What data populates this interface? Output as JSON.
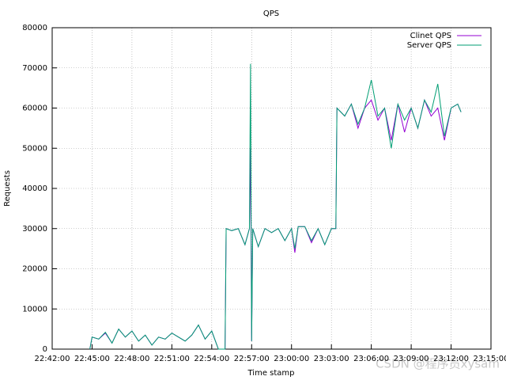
{
  "chart_data": {
    "type": "line",
    "title": "QPS",
    "x_label": "Time stamp",
    "y_label": "Requests",
    "xlim": [
      "22:42:00",
      "23:15:00"
    ],
    "xticks": [
      "22:42:00",
      "22:45:00",
      "22:48:00",
      "22:51:00",
      "22:54:00",
      "22:57:00",
      "23:00:00",
      "23:03:00",
      "23:06:00",
      "23:09:00",
      "23:12:00",
      "23:15:00"
    ],
    "ylim": [
      0,
      80000
    ],
    "yticks": [
      0,
      10000,
      20000,
      30000,
      40000,
      50000,
      60000,
      70000,
      80000
    ],
    "grid": true,
    "legend": "top-right",
    "watermark": "CSDN @程序员xysam",
    "x": [
      "22:44:50",
      "22:45:00",
      "22:45:30",
      "22:46:00",
      "22:46:30",
      "22:47:00",
      "22:47:30",
      "22:48:00",
      "22:48:30",
      "22:49:00",
      "22:49:30",
      "22:50:00",
      "22:50:30",
      "22:51:00",
      "22:51:30",
      "22:52:00",
      "22:52:30",
      "22:53:00",
      "22:53:30",
      "22:54:00",
      "22:54:20",
      "22:54:30",
      "22:55:00",
      "22:55:05",
      "22:55:30",
      "22:56:00",
      "22:56:30",
      "22:56:50",
      "22:56:55",
      "22:57:00",
      "22:57:05",
      "22:57:30",
      "22:58:00",
      "22:58:30",
      "22:59:00",
      "22:59:30",
      "23:00:00",
      "23:00:15",
      "23:00:30",
      "23:01:00",
      "23:01:30",
      "23:02:00",
      "23:02:30",
      "23:03:00",
      "23:03:20",
      "23:03:25",
      "23:04:00",
      "23:04:30",
      "23:05:00",
      "23:05:30",
      "23:06:00",
      "23:06:30",
      "23:07:00",
      "23:07:30",
      "23:08:00",
      "23:08:30",
      "23:09:00",
      "23:09:30",
      "23:10:00",
      "23:10:30",
      "23:11:00",
      "23:11:30",
      "23:12:00",
      "23:12:30",
      "23:12:45"
    ],
    "series": [
      {
        "name": "Clinet QPS",
        "color": "#9400d3",
        "values": [
          0,
          3000,
          2500,
          4000,
          1500,
          5000,
          3000,
          4500,
          2000,
          3500,
          1000,
          3000,
          2500,
          4000,
          3000,
          2000,
          3500,
          6000,
          2500,
          4500,
          1500,
          0,
          0,
          30000,
          29500,
          30000,
          26000,
          30000,
          50000,
          2000,
          30000,
          25500,
          30000,
          29000,
          30000,
          27000,
          30000,
          24000,
          30500,
          30500,
          26500,
          30000,
          26000,
          30000,
          30000,
          60000,
          58000,
          61000,
          55000,
          60000,
          62000,
          57000,
          60000,
          52000,
          61000,
          54000,
          60000,
          55000,
          62000,
          58000,
          60000,
          52000,
          60000,
          61000,
          59000
        ]
      },
      {
        "name": "Server QPS",
        "color": "#009e73",
        "values": [
          0,
          3000,
          2500,
          4200,
          1500,
          5000,
          3000,
          4500,
          2000,
          3500,
          1000,
          3000,
          2500,
          4000,
          3000,
          2000,
          3500,
          6000,
          2500,
          4500,
          1500,
          0,
          0,
          30000,
          29500,
          30000,
          26000,
          30000,
          71000,
          2000,
          30000,
          25500,
          30000,
          29000,
          30000,
          27000,
          30000,
          25000,
          30500,
          30500,
          27000,
          30000,
          26000,
          30000,
          30000,
          60000,
          58000,
          61000,
          56000,
          60000,
          67000,
          58000,
          60000,
          50000,
          61000,
          57000,
          60000,
          55000,
          62000,
          59000,
          66000,
          53000,
          60000,
          61000,
          59000
        ]
      }
    ]
  }
}
